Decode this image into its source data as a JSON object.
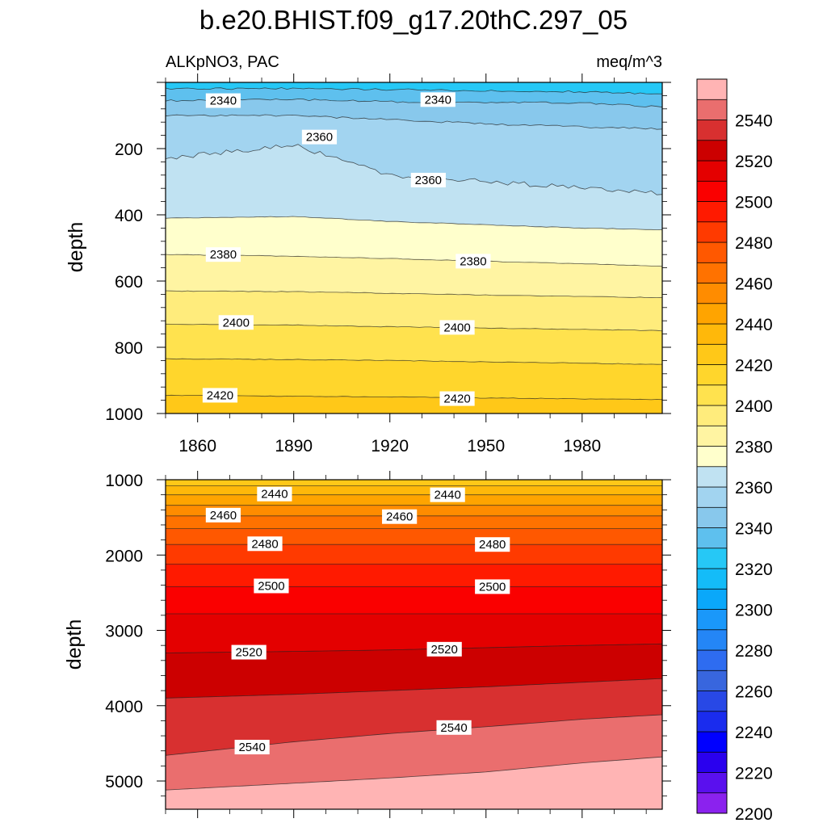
{
  "figure": {
    "title": "b.e20.BHIST.f09_g17.20thC.297_05",
    "left_label": "ALKpNO3, PAC",
    "right_label": "meq/m^3"
  },
  "colors": {
    "levels": [
      2200,
      2210,
      2220,
      2230,
      2240,
      2250,
      2260,
      2270,
      2280,
      2290,
      2300,
      2310,
      2320,
      2330,
      2340,
      2350,
      2360,
      2370,
      2380,
      2390,
      2400,
      2410,
      2420,
      2430,
      2440,
      2450,
      2460,
      2470,
      2480,
      2490,
      2500,
      2510,
      2520,
      2530,
      2540,
      2550
    ],
    "fills": [
      "#8b22ee",
      "#5a10ee",
      "#2a00ee",
      "#0000ff",
      "#1a2cee",
      "#2848e6",
      "#3866de",
      "#2e6cf0",
      "#2486f6",
      "#1a98fa",
      "#0aa8fa",
      "#14bcf8",
      "#26c8f6",
      "#5ec0ee",
      "#88c8ec",
      "#a2d4f0",
      "#c0e2f2",
      "#ffffcc",
      "#fff4a2",
      "#ffec7c",
      "#ffe24e",
      "#ffd62c",
      "#ffc818",
      "#ffb80a",
      "#ffa400",
      "#ff8c00",
      "#ff7200",
      "#ff5800",
      "#ff3a00",
      "#ff1a00",
      "#fa0000",
      "#e40000",
      "#cc0000",
      "#d83030",
      "#ea6e6e",
      "#ffb4b4"
    ]
  },
  "colorbar": {
    "labels": [
      "2540",
      "2520",
      "2500",
      "2480",
      "2460",
      "2440",
      "2420",
      "2400",
      "2380",
      "2360",
      "2340",
      "2320",
      "2300",
      "2280",
      "2260",
      "2240",
      "2220",
      "2200"
    ]
  },
  "chart_data": [
    {
      "type": "contour",
      "panel": "upper",
      "ylabel": "depth",
      "xlim": [
        1850,
        2005
      ],
      "ylim": [
        1000,
        0
      ],
      "xticks": [
        1860,
        1890,
        1920,
        1950,
        1980
      ],
      "xtick_labels": [
        "1860",
        "1890",
        "1920",
        "1950",
        "1980"
      ],
      "yticks": [
        200,
        400,
        600,
        800,
        1000
      ],
      "ytick_labels": [
        "200",
        "400",
        "600",
        "800",
        "1000"
      ],
      "years": [
        1850,
        1890,
        1920,
        1950,
        1980,
        2005
      ],
      "contours": [
        {
          "level": 2330,
          "depth": [
            20,
            18,
            22,
            25,
            28,
            35
          ]
        },
        {
          "level": 2340,
          "depth": [
            55,
            52,
            58,
            60,
            62,
            75
          ]
        },
        {
          "level": 2350,
          "depth": [
            100,
            100,
            112,
            125,
            135,
            140
          ]
        },
        {
          "level": 2360,
          "depth": [
            230,
            190,
            280,
            300,
            318,
            335
          ]
        },
        {
          "level": 2370,
          "depth": [
            410,
            405,
            420,
            430,
            440,
            445
          ]
        },
        {
          "level": 2380,
          "depth": [
            520,
            525,
            532,
            540,
            548,
            555
          ]
        },
        {
          "level": 2390,
          "depth": [
            630,
            632,
            637,
            642,
            647,
            650
          ]
        },
        {
          "level": 2400,
          "depth": [
            730,
            733,
            738,
            742,
            746,
            750
          ]
        },
        {
          "level": 2410,
          "depth": [
            835,
            837,
            840,
            844,
            848,
            852
          ]
        },
        {
          "level": 2420,
          "depth": [
            945,
            948,
            950,
            953,
            956,
            958
          ]
        }
      ],
      "labels": [
        {
          "text": "2340",
          "year": 1868,
          "depth": 55
        },
        {
          "text": "2340",
          "year": 1935,
          "depth": 52
        },
        {
          "text": "2360",
          "year": 1898,
          "depth": 165
        },
        {
          "text": "2360",
          "year": 1932,
          "depth": 295
        },
        {
          "text": "2380",
          "year": 1868,
          "depth": 520
        },
        {
          "text": "2380",
          "year": 1946,
          "depth": 540
        },
        {
          "text": "2400",
          "year": 1872,
          "depth": 725
        },
        {
          "text": "2400",
          "year": 1941,
          "depth": 740
        },
        {
          "text": "2420",
          "year": 1867,
          "depth": 945
        },
        {
          "text": "2420",
          "year": 1941,
          "depth": 955
        }
      ]
    },
    {
      "type": "contour",
      "panel": "lower",
      "ylabel": "depth",
      "xlim": [
        1850,
        2005
      ],
      "ylim": [
        5375,
        1000
      ],
      "xticks": [
        1860,
        1890,
        1920,
        1950,
        1980
      ],
      "yticks": [
        1000,
        2000,
        3000,
        4000,
        5000
      ],
      "ytick_labels": [
        "1000",
        "2000",
        "3000",
        "4000",
        "5000"
      ],
      "years": [
        1850,
        1890,
        1920,
        1950,
        1980,
        2005
      ],
      "contours": [
        {
          "level": 2430,
          "depth": [
            1080,
            1080,
            1080,
            1080,
            1080,
            1080
          ]
        },
        {
          "level": 2440,
          "depth": [
            1200,
            1200,
            1200,
            1200,
            1200,
            1200
          ]
        },
        {
          "level": 2450,
          "depth": [
            1340,
            1340,
            1340,
            1340,
            1340,
            1340
          ]
        },
        {
          "level": 2460,
          "depth": [
            1480,
            1480,
            1480,
            1480,
            1480,
            1480
          ]
        },
        {
          "level": 2470,
          "depth": [
            1650,
            1650,
            1650,
            1650,
            1650,
            1650
          ]
        },
        {
          "level": 2480,
          "depth": [
            1860,
            1860,
            1860,
            1860,
            1860,
            1860
          ]
        },
        {
          "level": 2490,
          "depth": [
            2120,
            2120,
            2120,
            2120,
            2120,
            2120
          ]
        },
        {
          "level": 2500,
          "depth": [
            2420,
            2420,
            2420,
            2420,
            2420,
            2420
          ]
        },
        {
          "level": 2510,
          "depth": [
            2780,
            2780,
            2780,
            2780,
            2780,
            2780
          ]
        },
        {
          "level": 2520,
          "depth": [
            3300,
            3280,
            3260,
            3230,
            3200,
            3180
          ]
        },
        {
          "level": 2530,
          "depth": [
            3900,
            3850,
            3800,
            3750,
            3690,
            3640
          ]
        },
        {
          "level": 2540,
          "depth": [
            4660,
            4480,
            4370,
            4280,
            4180,
            4120
          ]
        },
        {
          "level": 2550,
          "depth": [
            5120,
            5030,
            4960,
            4880,
            4760,
            4680
          ]
        }
      ],
      "labels": [
        {
          "text": "2440",
          "year": 1884,
          "depth": 1190
        },
        {
          "text": "2440",
          "year": 1938,
          "depth": 1200
        },
        {
          "text": "2460",
          "year": 1868,
          "depth": 1470
        },
        {
          "text": "2460",
          "year": 1923,
          "depth": 1490
        },
        {
          "text": "2480",
          "year": 1881,
          "depth": 1850
        },
        {
          "text": "2480",
          "year": 1952,
          "depth": 1860
        },
        {
          "text": "2500",
          "year": 1883,
          "depth": 2410
        },
        {
          "text": "2500",
          "year": 1952,
          "depth": 2420
        },
        {
          "text": "2520",
          "year": 1876,
          "depth": 3290
        },
        {
          "text": "2520",
          "year": 1937,
          "depth": 3250
        },
        {
          "text": "2540",
          "year": 1877,
          "depth": 4550
        },
        {
          "text": "2540",
          "year": 1940,
          "depth": 4290
        }
      ]
    }
  ]
}
